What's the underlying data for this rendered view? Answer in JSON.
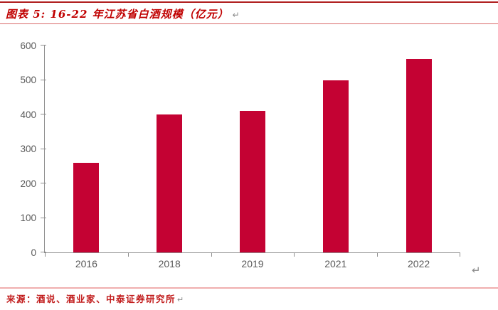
{
  "header": {
    "title": "图表 5: 16-22 年江苏省白酒规模（亿元）",
    "paragraph_mark": "↵"
  },
  "chart_data": {
    "type": "bar",
    "title": "16-22 年江苏省白酒规模（亿元）",
    "unit": "亿元",
    "categories": [
      "2016",
      "2018",
      "2019",
      "2021",
      "2022"
    ],
    "values": [
      260,
      400,
      410,
      500,
      560
    ],
    "xlabel": "",
    "ylabel": "",
    "ylim": [
      0,
      600
    ],
    "yticks": [
      0,
      100,
      200,
      300,
      400,
      500,
      600
    ],
    "grid": false,
    "legend": null,
    "bar_color": "#C40233",
    "axis_color": "#8F8F8F",
    "tick_label_color": "#595959"
  },
  "chart_paragraph_mark": "↵",
  "footer": {
    "source": "来源：酒说、酒业家、中泰证券研究所",
    "paragraph_mark": "↵"
  },
  "colors": {
    "top_rule": "#B01E1E",
    "title_text": "#C00000",
    "title_underline": "#D96A6A",
    "bottom_rule": "#F0AEAE",
    "source_text": "#C11B1B",
    "paragraph_mark": "#8A8A8A"
  }
}
